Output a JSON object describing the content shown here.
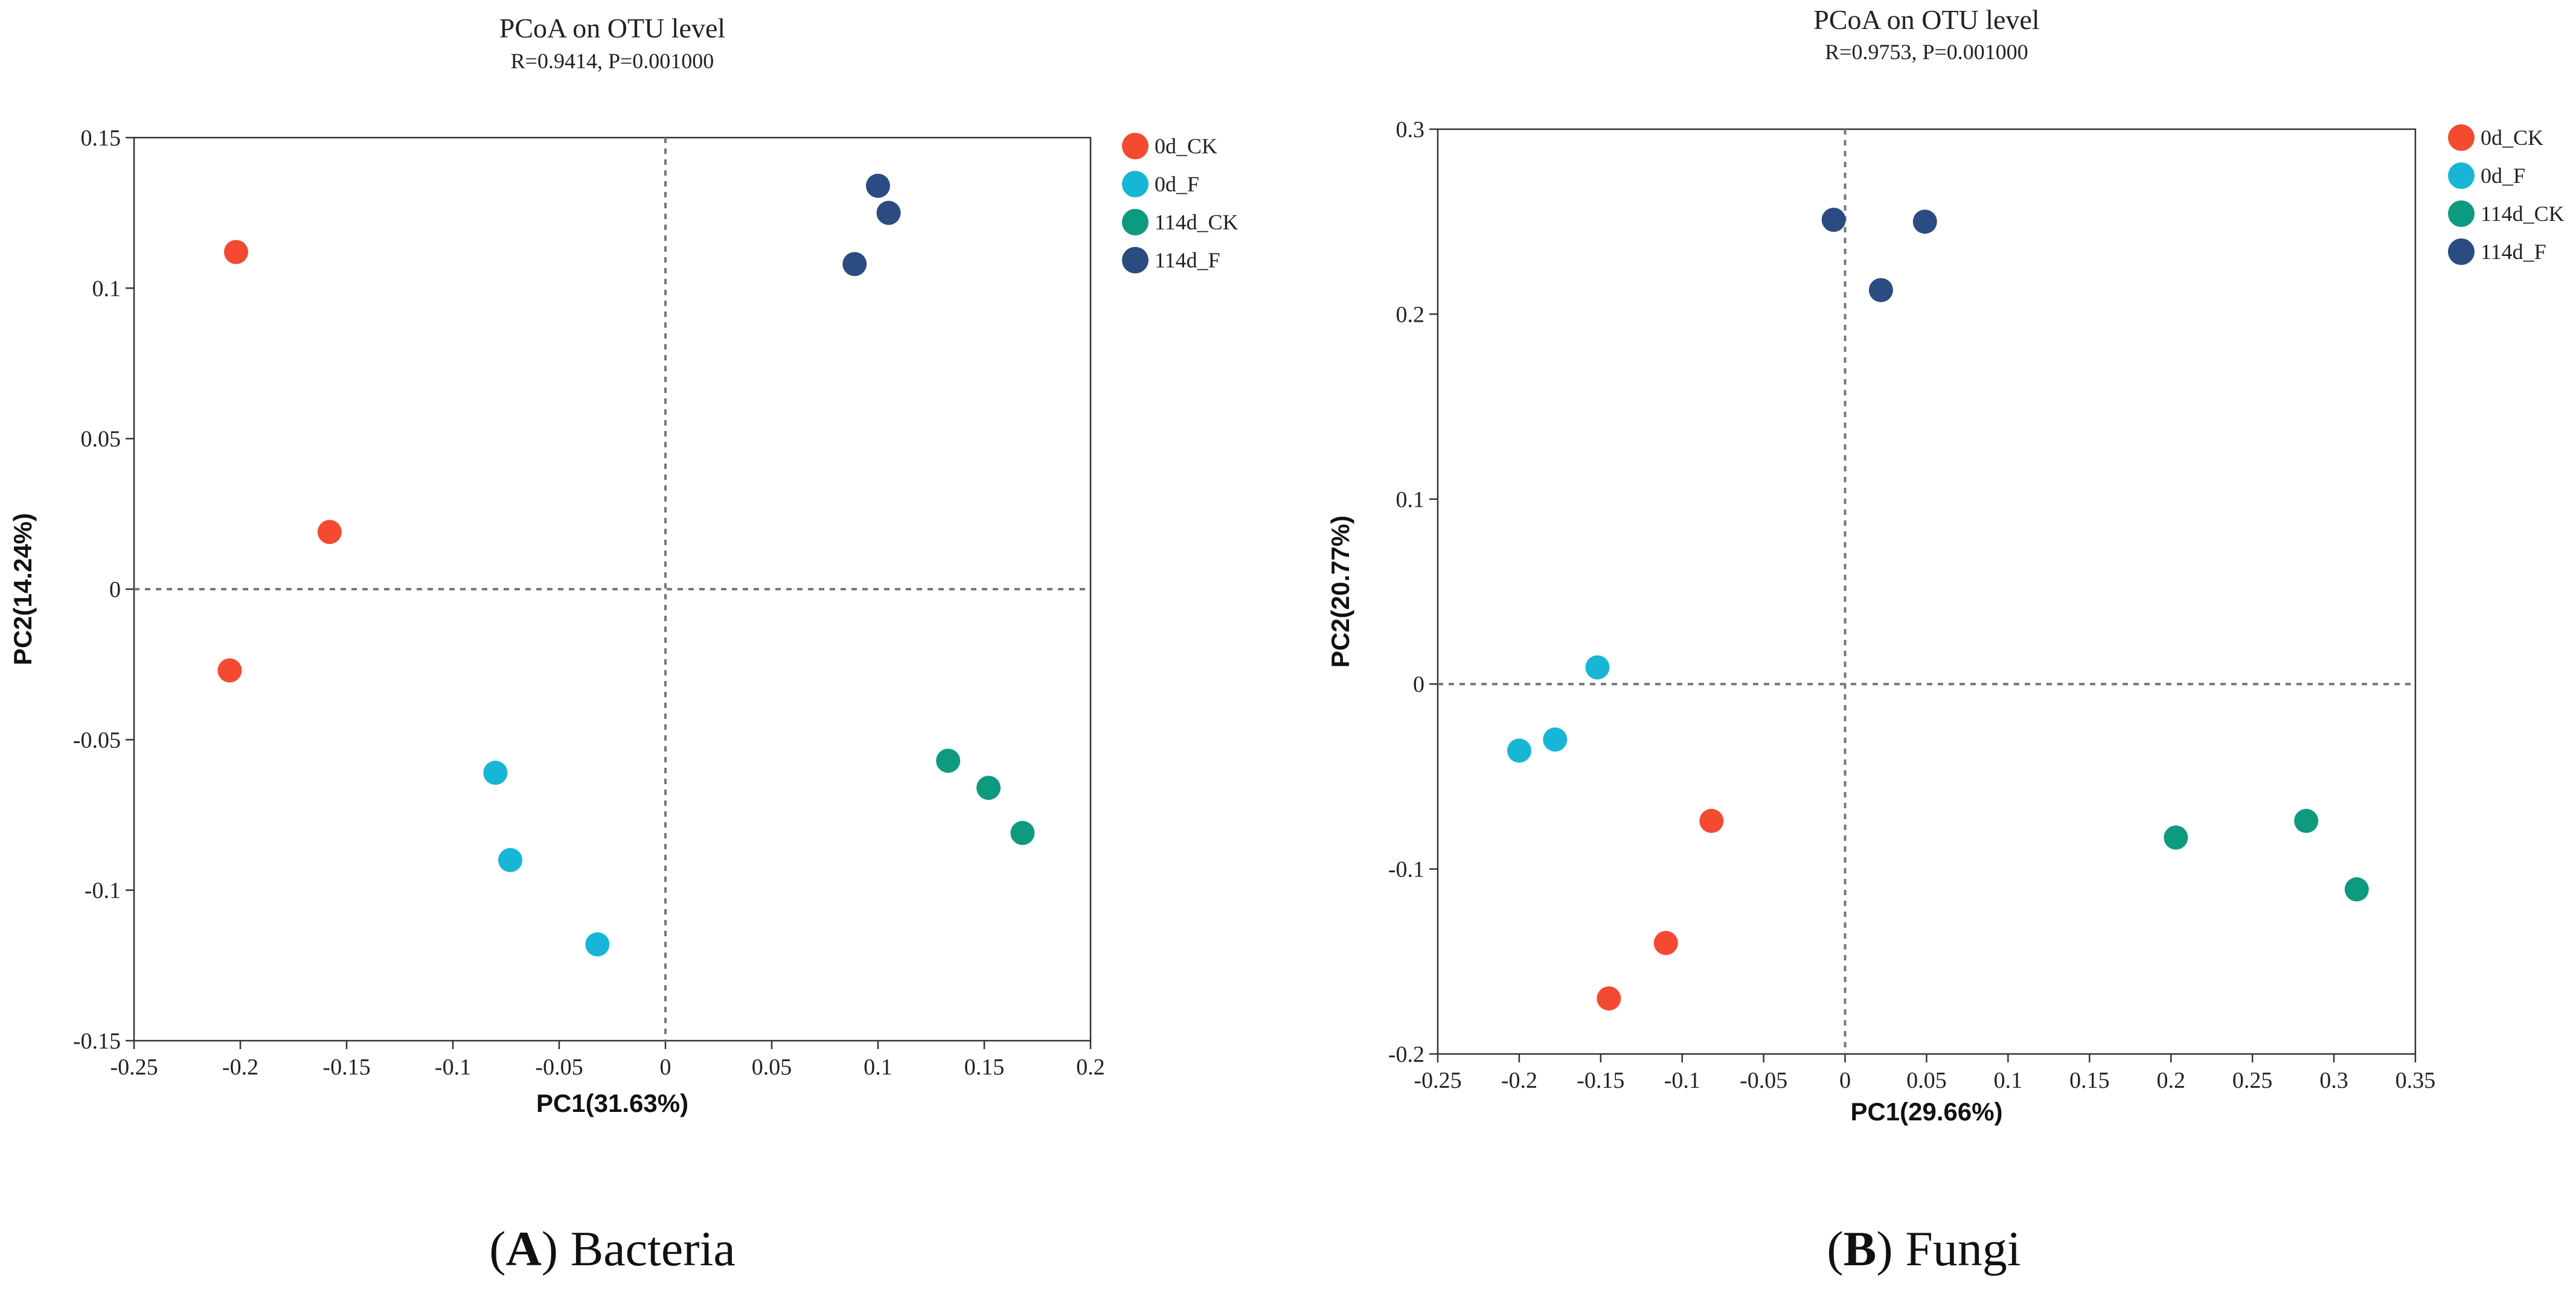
{
  "groups": [
    {
      "name": "0d_CK",
      "color": "#F44A32"
    },
    {
      "name": "0d_F",
      "color": "#18B6D6"
    },
    {
      "name": "114d_CK",
      "color": "#0E9A7E"
    },
    {
      "name": "114d_F",
      "color": "#2B4C80"
    }
  ],
  "chart_data": [
    {
      "type": "scatter",
      "title": "PCoA on OTU level",
      "subtitle": "R=0.9414, P=0.001000",
      "xlabel": "PC1(31.63%)",
      "ylabel": "PC2(14.24%)",
      "xlim": [
        -0.25,
        0.2
      ],
      "ylim": [
        -0.15,
        0.15
      ],
      "xticks": [
        "-0.25",
        "-0.2",
        "-0.15",
        "-0.1",
        "-0.05",
        "0",
        "0.05",
        "0.1",
        "0.15",
        "0.2"
      ],
      "yticks": [
        "-0.15",
        "-0.1",
        "-0.05",
        "0",
        "0.05",
        "0.1",
        "0.15"
      ],
      "series": [
        {
          "name": "0d_CK",
          "points": [
            [
              -0.202,
              0.112
            ],
            [
              -0.158,
              0.019
            ],
            [
              -0.205,
              -0.027
            ]
          ]
        },
        {
          "name": "0d_F",
          "points": [
            [
              -0.08,
              -0.061
            ],
            [
              -0.073,
              -0.09
            ],
            [
              -0.032,
              -0.118
            ]
          ]
        },
        {
          "name": "114d_CK",
          "points": [
            [
              0.133,
              -0.057
            ],
            [
              0.152,
              -0.066
            ],
            [
              0.168,
              -0.081
            ]
          ]
        },
        {
          "name": "114d_F",
          "points": [
            [
              0.1,
              0.134
            ],
            [
              0.105,
              0.125
            ],
            [
              0.089,
              0.108
            ]
          ]
        }
      ],
      "caption": {
        "letter": "A",
        "text": "Bacteria"
      }
    },
    {
      "type": "scatter",
      "title": "PCoA on OTU level",
      "subtitle": "R=0.9753, P=0.001000",
      "xlabel": "PC1(29.66%)",
      "ylabel": "PC2(20.77%)",
      "xlim": [
        -0.25,
        0.35
      ],
      "ylim": [
        -0.2,
        0.3
      ],
      "xticks": [
        "-0.25",
        "-0.2",
        "-0.15",
        "-0.1",
        "-0.05",
        "0",
        "0.05",
        "0.1",
        "0.15",
        "0.2",
        "0.25",
        "0.3",
        "0.35"
      ],
      "yticks": [
        "-0.2",
        "-0.1",
        "0",
        "0.1",
        "0.2",
        "0.3"
      ],
      "series": [
        {
          "name": "0d_CK",
          "points": [
            [
              -0.082,
              -0.074
            ],
            [
              -0.11,
              -0.14
            ],
            [
              -0.145,
              -0.17
            ]
          ]
        },
        {
          "name": "0d_F",
          "points": [
            [
              -0.152,
              0.009
            ],
            [
              -0.178,
              -0.03
            ],
            [
              -0.2,
              -0.036
            ]
          ]
        },
        {
          "name": "114d_CK",
          "points": [
            [
              0.203,
              -0.083
            ],
            [
              0.283,
              -0.074
            ],
            [
              0.314,
              -0.111
            ]
          ]
        },
        {
          "name": "114d_F",
          "points": [
            [
              -0.007,
              0.251
            ],
            [
              0.049,
              0.25
            ],
            [
              0.022,
              0.213
            ]
          ]
        }
      ],
      "caption": {
        "letter": "B",
        "text": "Fungi"
      }
    }
  ]
}
